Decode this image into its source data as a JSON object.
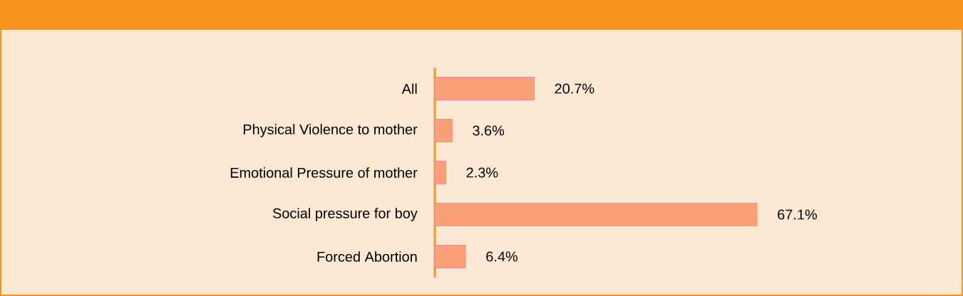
{
  "chart_data": {
    "type": "bar",
    "orientation": "horizontal",
    "categories": [
      "All",
      "Physical Violence to mother",
      "Emotional Pressure of mother",
      "Social pressure for boy",
      "Forced Abortion"
    ],
    "values": [
      20.7,
      3.6,
      2.3,
      67.1,
      6.4
    ],
    "value_labels": [
      "20.7%",
      "3.6%",
      "2.3%",
      "67.1%",
      "6.4%"
    ],
    "color": "#f9a077"
  }
}
